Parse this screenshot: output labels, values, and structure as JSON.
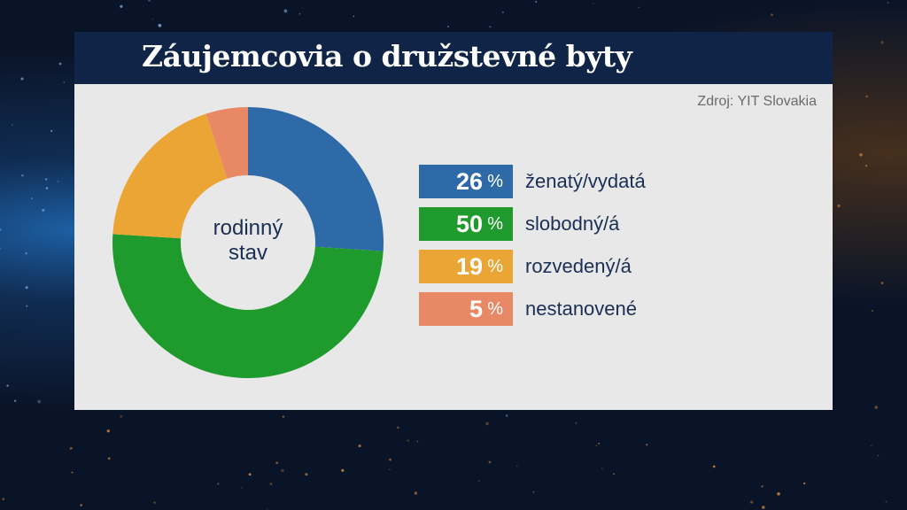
{
  "title": "Záujemcovia o družstevné byty",
  "source": "Zdroj: YIT Slovakia",
  "center_label": [
    "rodinný",
    "stav"
  ],
  "percent_sign": "%",
  "colors": {
    "title_bar": "#102447",
    "panel": "#e8e8e8",
    "text_dark": "#1a2f55"
  },
  "chart_data": {
    "type": "pie",
    "donut": true,
    "title": "Záujemcovia o družstevné byty",
    "center_label": "rodinný stav",
    "slices": [
      {
        "label": "ženatý/vydatá",
        "value": 26,
        "color": "#2e6aa8"
      },
      {
        "label": "slobodný/á",
        "value": 50,
        "color": "#1f9a2c"
      },
      {
        "label": "rozvedený/á",
        "value": 19,
        "color": "#eaa535"
      },
      {
        "label": "nestanovené",
        "value": 5,
        "color": "#e98865"
      }
    ]
  }
}
